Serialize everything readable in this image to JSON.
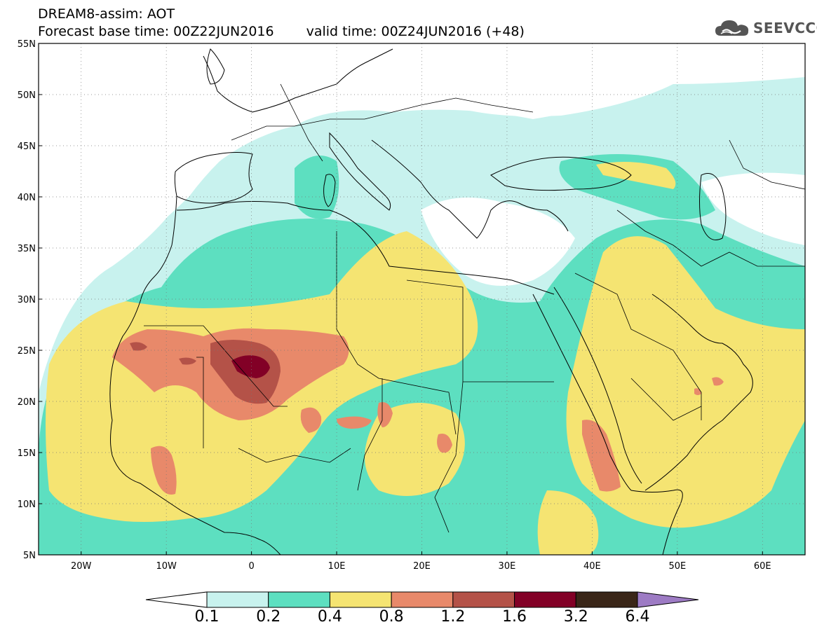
{
  "title": {
    "line1": "DREAM8-assim: AOT",
    "base": "Forecast base time: 00Z22JUN2016",
    "valid": "valid time: 00Z24JUN2016 (+48)"
  },
  "logo": {
    "text": "SEEVCCC",
    "icon": "cloud-icon"
  },
  "map_axes": {
    "lat_labels": [
      "55N",
      "50N",
      "45N",
      "40N",
      "35N",
      "30N",
      "25N",
      "20N",
      "15N",
      "10N",
      "5N"
    ],
    "lat_values": [
      55,
      50,
      45,
      40,
      35,
      30,
      25,
      20,
      15,
      10,
      5
    ],
    "lon_labels": [
      "20W",
      "10W",
      "0",
      "10E",
      "20E",
      "30E",
      "40E",
      "50E",
      "60E"
    ],
    "lon_values": [
      -20,
      -10,
      0,
      10,
      20,
      30,
      40,
      50,
      60
    ],
    "lon_range": [
      -25,
      65
    ],
    "lat_range": [
      5,
      55
    ],
    "grid": "dotted"
  },
  "legend": {
    "labels": [
      "0.1",
      "0.2",
      "0.4",
      "0.8",
      "1.2",
      "1.6",
      "3.2",
      "6.4"
    ],
    "colors": [
      "#ffffff",
      "#c8f2ee",
      "#5ddfc0",
      "#f5e472",
      "#e8896a",
      "#b45248",
      "#820026",
      "#3a2618",
      "#9d7bc4"
    ]
  },
  "colors": {
    "lt01": "#ffffff",
    "c01_02": "#c8f2ee",
    "c02_04": "#5ddfc0",
    "c04_08": "#f5e472",
    "c08_12": "#e8896a",
    "c12_16": "#b45248",
    "c16_32": "#820026"
  }
}
